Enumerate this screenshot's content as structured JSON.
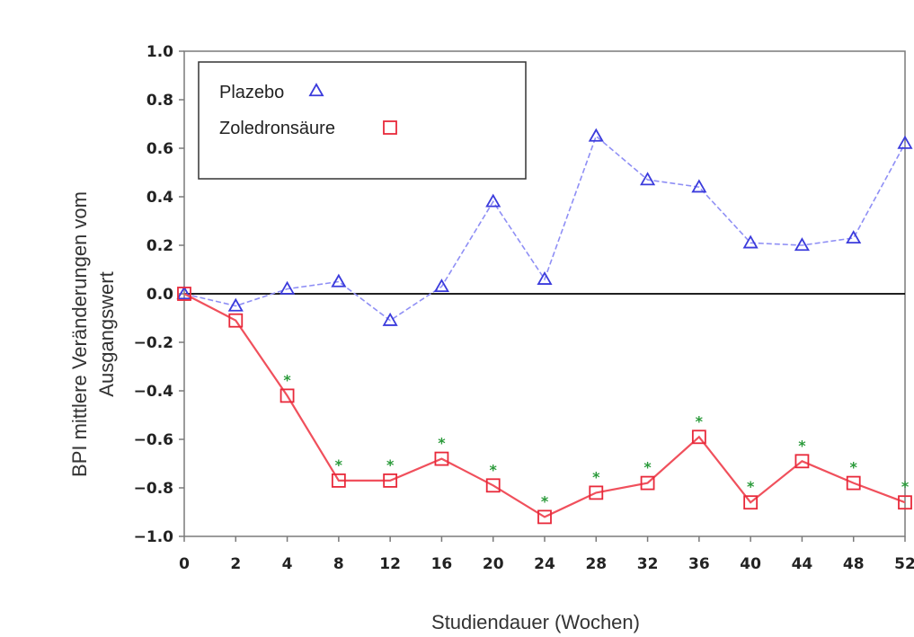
{
  "chart_data": {
    "type": "line",
    "x": [
      0,
      2,
      4,
      8,
      12,
      16,
      20,
      24,
      28,
      32,
      36,
      40,
      44,
      48,
      52
    ],
    "x_tick_labels": [
      "0",
      "2",
      "4",
      "8",
      "12",
      "16",
      "20",
      "24",
      "28",
      "32",
      "36",
      "40",
      "44",
      "48",
      "52"
    ],
    "y_tick_labels": [
      "1.0",
      "0.8",
      "0.6",
      "0.4",
      "0.2",
      "0.0",
      "−0.2",
      "−0.4",
      "−0.6",
      "−0.8",
      "−1.0"
    ],
    "y_ticks": [
      1.0,
      0.8,
      0.6,
      0.4,
      0.2,
      0.0,
      -0.2,
      -0.4,
      -0.6,
      -0.8,
      -1.0
    ],
    "ylim": [
      -1.0,
      1.0
    ],
    "xlabel": "Studiendauer (Wochen)",
    "ylabel_line1": "BPI mittlere Veränderungen vom",
    "ylabel_line2": "Ausgangswert",
    "reference_line_y": 0.0,
    "grid": false,
    "legend_position": "top-left",
    "series": [
      {
        "name": "Plazebo",
        "marker": "triangle",
        "color": "#3b3bdc",
        "line_color": "#8f8ff5",
        "values": [
          0.0,
          -0.05,
          0.02,
          0.05,
          -0.11,
          0.03,
          0.38,
          0.06,
          0.65,
          0.47,
          0.44,
          0.21,
          0.2,
          0.23,
          0.62
        ]
      },
      {
        "name": "Zoledronsäure",
        "marker": "square",
        "color": "#e8293a",
        "line_color": "#f0505c",
        "values": [
          0.0,
          -0.11,
          -0.42,
          -0.77,
          -0.77,
          -0.68,
          -0.79,
          -0.92,
          -0.82,
          -0.78,
          -0.59,
          -0.86,
          -0.69,
          -0.78,
          -0.86
        ],
        "significance_marker": "*",
        "significance_color": "#2a9a3a",
        "significant": [
          false,
          false,
          true,
          true,
          true,
          true,
          true,
          true,
          true,
          true,
          true,
          true,
          true,
          true,
          true
        ]
      }
    ]
  }
}
